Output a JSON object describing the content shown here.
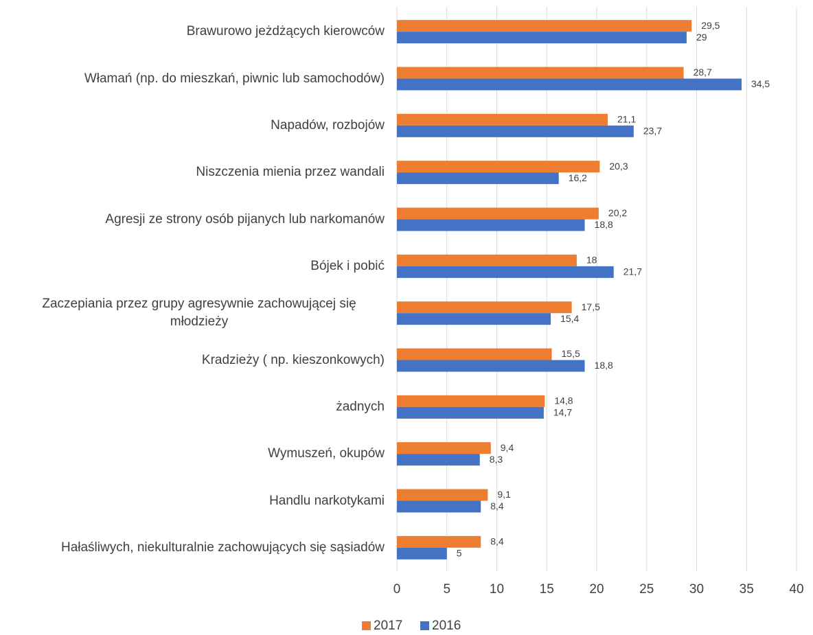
{
  "chart_data": {
    "type": "hbar",
    "categories": [
      "Brawurowo jeżdżących kierowców",
      "Włamań (np. do mieszkań, piwnic lub samochodów)",
      "Napadów, rozbojów",
      "Niszczenia mienia przez wandali",
      "Agresji ze strony osób pijanych lub narkomanów",
      "Bójek i pobić",
      "Zaczepiania przez grupy agresywnie zachowującej się młodzieży",
      "Kradzieży ( np. kieszonkowych)",
      "żadnych",
      "Wymuszeń, okupów",
      "Handlu narkotykami",
      "Hałaśliwych, niekulturalnie zachowujących się sąsiadów"
    ],
    "series": [
      {
        "name": "2017",
        "color": "#ed7d31",
        "values": [
          29.5,
          28.7,
          21.1,
          20.3,
          20.2,
          18,
          17.5,
          15.5,
          14.8,
          9.4,
          9.1,
          8.4
        ],
        "value_labels": [
          "29,5",
          "28,7",
          "21,1",
          "20,3",
          "20,2",
          "18",
          "17,5",
          "15,5",
          "14,8",
          "9,4",
          "9,1",
          "8,4"
        ]
      },
      {
        "name": "2016",
        "color": "#4472c4",
        "values": [
          29,
          34.5,
          23.7,
          16.2,
          18.8,
          21.7,
          15.4,
          18.8,
          14.7,
          8.3,
          8.4,
          5
        ],
        "value_labels": [
          "29",
          "34,5",
          "23,7",
          "16,2",
          "18,8",
          "21,7",
          "15,4",
          "18,8",
          "14,7",
          "8,3",
          "8,4",
          "5"
        ]
      }
    ],
    "xlim": [
      0,
      40
    ],
    "xticks": [
      0,
      5,
      10,
      15,
      20,
      25,
      30,
      35,
      40
    ],
    "grid": true,
    "legend": "bottom"
  }
}
